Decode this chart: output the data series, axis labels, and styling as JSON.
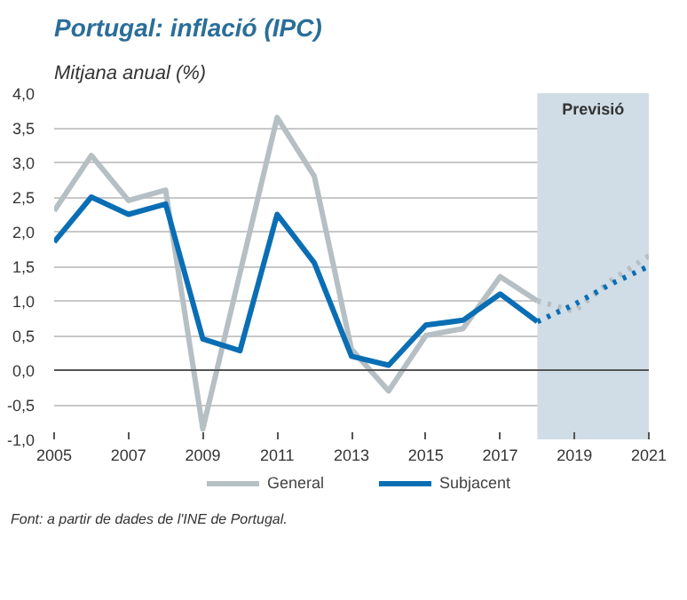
{
  "chart_data": {
    "type": "line",
    "title": "Portugal: inflació (IPC)",
    "subtitle": "Mitjana anual (%)",
    "annotations": [
      "Font: a partir de dades de l'INE de Portugal."
    ],
    "series": [
      {
        "name": "General",
        "color": "#b5bfc4",
        "x": [
          2005,
          2006,
          2007,
          2008,
          2009,
          2010,
          2011,
          2012,
          2013,
          2014,
          2015,
          2016,
          2017,
          2018
        ],
        "values": [
          2.3,
          3.1,
          2.45,
          2.6,
          -0.85,
          1.4,
          3.65,
          2.8,
          0.3,
          -0.3,
          0.5,
          0.6,
          1.35,
          1.0
        ]
      },
      {
        "name": "Subjacent",
        "color": "#0a6eb4",
        "x": [
          2005,
          2006,
          2007,
          2008,
          2009,
          2010,
          2011,
          2012,
          2013,
          2014,
          2015,
          2016,
          2017,
          2018
        ],
        "values": [
          1.85,
          2.5,
          2.25,
          2.4,
          0.45,
          0.28,
          2.25,
          1.55,
          0.2,
          0.07,
          0.65,
          0.72,
          1.1,
          0.7
        ]
      },
      {
        "color": "#b5bfc4",
        "line_style": "dotted",
        "x": [
          2018,
          2019,
          2020,
          2021
        ],
        "values": [
          1.0,
          0.85,
          1.3,
          1.65
        ]
      },
      {
        "color": "#0a6eb4",
        "line_style": "dotted",
        "x": [
          2018,
          2019,
          2020,
          2021
        ],
        "values": [
          0.7,
          0.95,
          1.25,
          1.5
        ]
      }
    ],
    "bands": [
      {
        "axis": "x",
        "from": 2018,
        "to": 2021,
        "label": "Previsió",
        "color": "#d0dde6"
      }
    ],
    "xlim": [
      2005,
      2021
    ],
    "xticks": [
      2005,
      2007,
      2009,
      2011,
      2013,
      2015,
      2017,
      2019,
      2021
    ],
    "ylim": [
      -1,
      4
    ],
    "yticks": [
      {
        "value": -1,
        "label": "-1,0"
      },
      {
        "value": -0.5,
        "label": "-0,5"
      },
      {
        "value": 0,
        "label": "0,0"
      },
      {
        "value": 0.5,
        "label": "0,5"
      },
      {
        "value": 1,
        "label": "1,0"
      },
      {
        "value": 1.5,
        "label": "1,5"
      },
      {
        "value": 2,
        "label": "2,0"
      },
      {
        "value": 2.5,
        "label": "2,5"
      },
      {
        "value": 3,
        "label": "3,0"
      },
      {
        "value": 3.5,
        "label": "3,5"
      },
      {
        "value": 4,
        "label": "4,0"
      }
    ],
    "grid": "y",
    "legend": "bottom",
    "line_style": "solid"
  }
}
